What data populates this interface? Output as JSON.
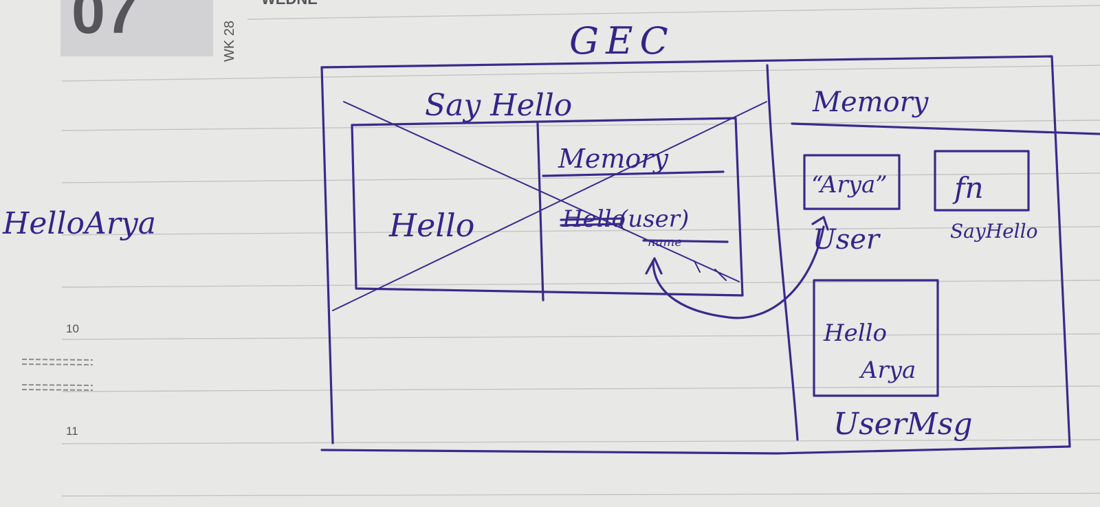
{
  "planner": {
    "date_number": "07",
    "week_label": "WK 28",
    "weekday_fragment": "WEDNE",
    "hour_10": "10",
    "hour_11": "11"
  },
  "notes": {
    "title": "GEC",
    "output": "HelloArya",
    "say_hello_heading": "Say Hello",
    "inner_local": "Hello",
    "inner_memory_heading": "Memory",
    "inner_memory_struck": "Hello",
    "inner_memory_param": "(user)",
    "inner_memory_struck_param": "name",
    "gec_memory_heading": "Memory",
    "user_value": "“Arya”",
    "user_label": "User",
    "sayhello_value": "fn",
    "sayhello_label": "SayHello",
    "usermsg_line1": "Hello",
    "usermsg_line2": "Arya",
    "usermsg_label": "UserMsg"
  },
  "colors": {
    "ink": "#3a2a8c",
    "paper": "#e9e9e7",
    "date_tab": "#d3d3d6"
  }
}
